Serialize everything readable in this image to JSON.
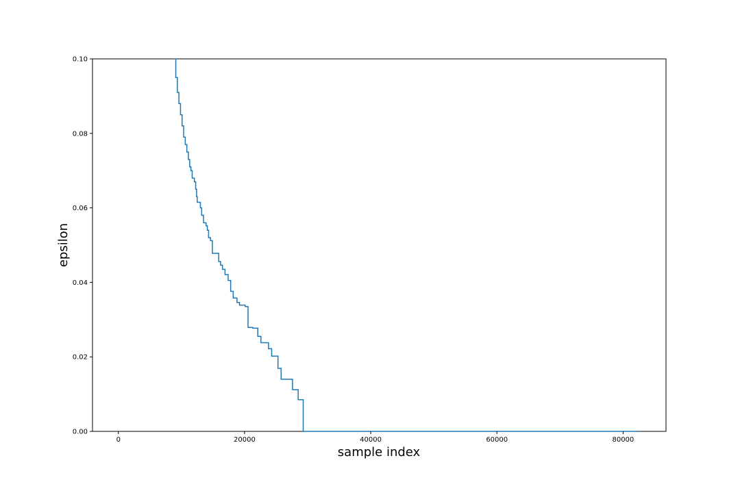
{
  "chart_data": {
    "type": "line",
    "title": "",
    "xlabel": "sample index",
    "ylabel": "epsilon",
    "xlim": [
      -4100,
      86800
    ],
    "ylim": [
      0.0,
      0.1
    ],
    "xticks": [
      0,
      20000,
      40000,
      60000,
      80000
    ],
    "xtick_labels": [
      "0",
      "20000",
      "40000",
      "60000",
      "80000"
    ],
    "yticks": [
      0.0,
      0.02,
      0.04,
      0.06,
      0.08,
      0.1
    ],
    "ytick_labels": [
      "0.00",
      "0.02",
      "0.04",
      "0.06",
      "0.08",
      "0.10"
    ],
    "grid": false,
    "series": [
      {
        "color": "#1f77b4",
        "step": "post",
        "points": [
          [
            8850,
            0.1
          ],
          [
            9100,
            0.095
          ],
          [
            9350,
            0.091
          ],
          [
            9600,
            0.088
          ],
          [
            9850,
            0.085
          ],
          [
            10100,
            0.082
          ],
          [
            10350,
            0.079
          ],
          [
            10600,
            0.077
          ],
          [
            10850,
            0.075
          ],
          [
            11100,
            0.073
          ],
          [
            11300,
            0.071
          ],
          [
            11500,
            0.07
          ],
          [
            11700,
            0.068
          ],
          [
            12050,
            0.067
          ],
          [
            12250,
            0.065
          ],
          [
            12400,
            0.063
          ],
          [
            12500,
            0.0615
          ],
          [
            13000,
            0.06
          ],
          [
            13200,
            0.058
          ],
          [
            13500,
            0.056
          ],
          [
            13900,
            0.0552
          ],
          [
            14100,
            0.054
          ],
          [
            14300,
            0.052
          ],
          [
            14600,
            0.0512
          ],
          [
            14900,
            0.0478
          ],
          [
            15900,
            0.0456
          ],
          [
            16200,
            0.0446
          ],
          [
            16500,
            0.0435
          ],
          [
            16900,
            0.0421
          ],
          [
            17400,
            0.0405
          ],
          [
            17800,
            0.0376
          ],
          [
            18200,
            0.0358
          ],
          [
            18800,
            0.0346
          ],
          [
            19200,
            0.0339
          ],
          [
            20100,
            0.0335
          ],
          [
            20550,
            0.0279
          ],
          [
            21300,
            0.0277
          ],
          [
            22100,
            0.0255
          ],
          [
            22600,
            0.0238
          ],
          [
            23800,
            0.0222
          ],
          [
            24300,
            0.0202
          ],
          [
            25300,
            0.0169
          ],
          [
            25800,
            0.014
          ],
          [
            27600,
            0.0112
          ],
          [
            28500,
            0.0085
          ],
          [
            29300,
            0.0
          ],
          [
            82700,
            0.0
          ]
        ]
      }
    ]
  }
}
